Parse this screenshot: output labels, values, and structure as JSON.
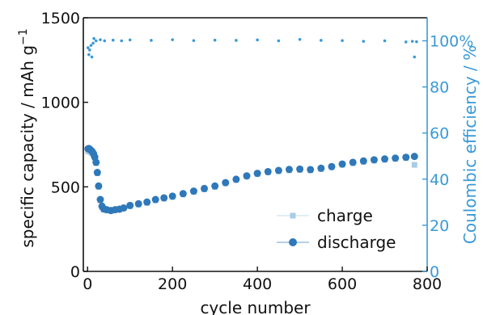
{
  "chart_data": {
    "type": "scatter",
    "x_axis": {
      "label": "cycle number",
      "range": [
        -10,
        800
      ],
      "ticks": [
        0,
        200,
        400,
        600,
        800
      ],
      "tick_labels": [
        "0",
        "200",
        "400",
        "600",
        "800"
      ]
    },
    "y_left": {
      "label": "specific capacity / mAh g",
      "label_superscript": "−1",
      "range": [
        0,
        1500
      ],
      "ticks": [
        0,
        500,
        1000,
        1500
      ],
      "tick_labels": [
        "0",
        "500",
        "1000",
        "1500"
      ]
    },
    "y_right": {
      "label": "Coulombic efficiency / %",
      "range": [
        0,
        110
      ],
      "ticks": [
        0,
        20,
        40,
        60,
        80,
        100
      ],
      "tick_labels": [
        "0",
        "20",
        "40",
        "60",
        "80",
        "100%"
      ]
    },
    "series": [
      {
        "name": "charge",
        "axis": "left",
        "marker": "square",
        "color": "#a9cde6",
        "x": [
          1,
          3,
          5,
          8,
          11,
          14,
          17,
          20,
          23,
          26,
          30,
          34,
          38,
          45,
          55,
          65,
          75,
          85,
          100,
          120,
          140,
          160,
          180,
          200,
          225,
          250,
          275,
          300,
          325,
          350,
          375,
          400,
          425,
          450,
          475,
          500,
          525,
          550,
          575,
          600,
          625,
          650,
          675,
          700,
          725,
          750,
          770
        ],
        "y": [
          710,
          712,
          708,
          704,
          698,
          688,
          670,
          640,
          580,
          500,
          420,
          380,
          365,
          360,
          358,
          362,
          365,
          372,
          385,
          395,
          405,
          420,
          430,
          440,
          455,
          470,
          485,
          500,
          520,
          540,
          560,
          575,
          585,
          592,
          598,
          600,
          598,
          605,
          615,
          630,
          640,
          648,
          655,
          660,
          665,
          670,
          630
        ]
      },
      {
        "name": "discharge",
        "axis": "left",
        "marker": "circle",
        "color": "#2f78b9",
        "x": [
          1,
          3,
          5,
          8,
          11,
          14,
          17,
          20,
          23,
          26,
          30,
          34,
          38,
          45,
          55,
          65,
          75,
          85,
          100,
          120,
          140,
          160,
          180,
          200,
          225,
          250,
          275,
          300,
          325,
          350,
          375,
          400,
          425,
          450,
          475,
          500,
          525,
          550,
          575,
          600,
          625,
          650,
          675,
          700,
          725,
          750,
          770
        ],
        "y": [
          725,
          727,
          722,
          716,
          708,
          696,
          676,
          645,
          585,
          505,
          425,
          385,
          370,
          365,
          360,
          365,
          368,
          375,
          390,
          400,
          410,
          425,
          435,
          445,
          460,
          475,
          490,
          505,
          525,
          545,
          565,
          580,
          590,
          597,
          603,
          605,
          602,
          610,
          620,
          635,
          645,
          653,
          660,
          665,
          670,
          675,
          680
        ]
      },
      {
        "name": "Coulombic efficiency",
        "axis": "right",
        "marker": "dot",
        "color": "#3a9ad6",
        "x": [
          1,
          3,
          5,
          8,
          10,
          13,
          15,
          20,
          30,
          40,
          60,
          80,
          100,
          150,
          200,
          250,
          300,
          350,
          400,
          450,
          500,
          550,
          600,
          650,
          700,
          750,
          765,
          770,
          775
        ],
        "y": [
          97,
          94,
          96,
          98,
          93,
          99,
          101,
          100,
          100.5,
          100,
          100.3,
          100,
          100.4,
          100.2,
          100.5,
          100.1,
          100.3,
          100.2,
          100.4,
          100,
          100.6,
          100.2,
          100.1,
          99.8,
          100,
          99.5,
          99.8,
          93,
          99.6
        ]
      }
    ],
    "legend": {
      "placement": "bottom-right",
      "entries": [
        "charge",
        "discharge"
      ]
    }
  }
}
